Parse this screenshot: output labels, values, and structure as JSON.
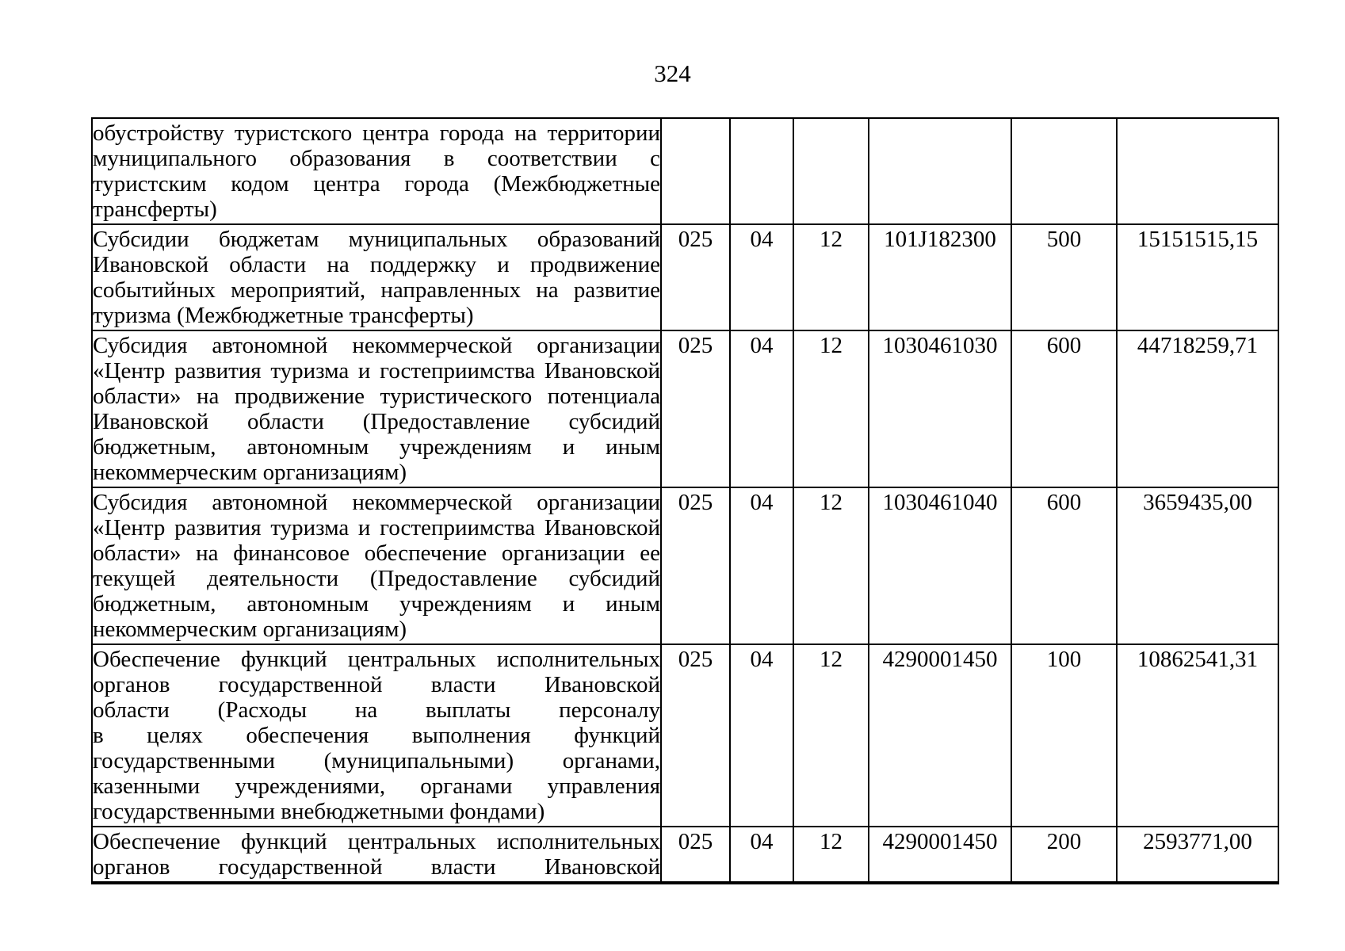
{
  "page_number": "324",
  "table": {
    "rows": [
      {
        "name_lines": [
          "обустройству туристского центра города на территории",
          "муниципального образования в соответствии с",
          "туристским кодом центра города (Межбюджетные",
          "трансферты)"
        ],
        "row_continues_to_next_page": false,
        "grbs": "",
        "section": "",
        "subsection": "",
        "target_article": "",
        "expense_type": "",
        "amount": ""
      },
      {
        "name_lines": [
          "Субсидии бюджетам муниципальных образований",
          "Ивановской области на поддержку и продвижение",
          "событийных мероприятий, направленных на развитие",
          "туризма (Межбюджетные трансферты)"
        ],
        "row_continues_to_next_page": false,
        "grbs": "025",
        "section": "04",
        "subsection": "12",
        "target_article": "101J182300",
        "expense_type": "500",
        "amount": "15151515,15"
      },
      {
        "name_lines": [
          "Субсидия автономной некоммерческой организации",
          "«Центр развития туризма и гостеприимства Ивановской",
          "области» на продвижение туристического потенциала",
          "Ивановской области (Предоставление субсидий",
          "бюджетным, автономным учреждениям и иным",
          "некоммерческим организациям)"
        ],
        "row_continues_to_next_page": false,
        "grbs": "025",
        "section": "04",
        "subsection": "12",
        "target_article": "1030461030",
        "expense_type": "600",
        "amount": "44718259,71"
      },
      {
        "name_lines": [
          "Субсидия автономной некоммерческой организации",
          "«Центр развития туризма и гостеприимства Ивановской",
          "области» на финансовое обеспечение организации ее",
          "текущей деятельности (Предоставление субсидий",
          "бюджетным, автономным учреждениям и иным",
          "некоммерческим организациям)"
        ],
        "row_continues_to_next_page": false,
        "grbs": "025",
        "section": "04",
        "subsection": "12",
        "target_article": "1030461040",
        "expense_type": "600",
        "amount": "3659435,00"
      },
      {
        "name_lines": [
          "Обеспечение функций центральных исполнительных",
          "органов государственной власти Ивановской",
          "области (Расходы на выплаты персоналу",
          "в целях обеспечения выполнения функций",
          "государственными (муниципальными) органами,",
          "казенными учреждениями, органами управления",
          "государственными внебюджетными фондами)"
        ],
        "row_continues_to_next_page": false,
        "grbs": "025",
        "section": "04",
        "subsection": "12",
        "target_article": "4290001450",
        "expense_type": "100",
        "amount": "10862541,31"
      },
      {
        "name_lines": [
          "Обеспечение функций центральных исполнительных",
          "органов государственной власти Ивановской"
        ],
        "row_continues_to_next_page": true,
        "grbs": "025",
        "section": "04",
        "subsection": "12",
        "target_article": "4290001450",
        "expense_type": "200",
        "amount": "2593771,00"
      }
    ]
  }
}
